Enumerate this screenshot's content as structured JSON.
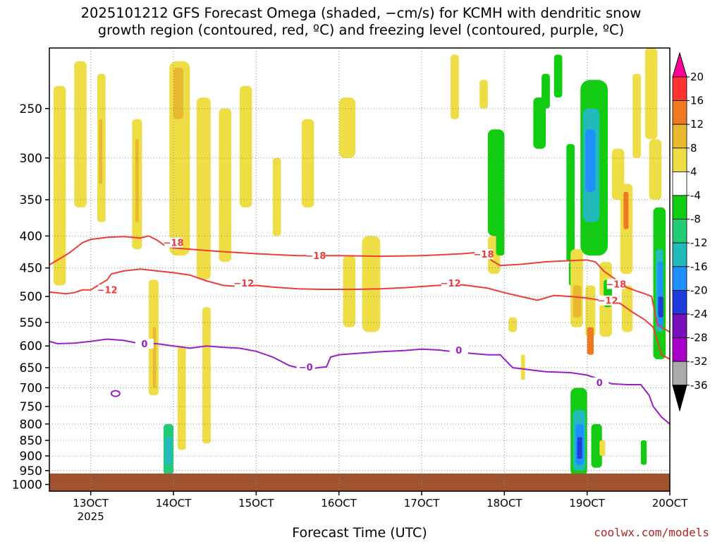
{
  "title_lines": [
    "2025101212 GFS Forecast Omega (shaded, −cm/s) for KCMH with dendritic snow",
    "growth region (contoured, red, ºC) and freezing level (contoured, purple, ºC)"
  ],
  "credit": "coolwx.com/models",
  "chart_data": {
    "type": "heatmap",
    "title": "2025101212 GFS Forecast Omega (shaded, −cm/s) for KCMH with dendritic snow growth region (contoured, red, ºC) and freezing level (contoured, purple, ºC)",
    "xlabel": "Forecast Time (UTC)",
    "ylabel": "",
    "x_ticks": [
      {
        "day": 13,
        "label": "13OCT",
        "sublabel": "2025"
      },
      {
        "day": 14,
        "label": "14OCT"
      },
      {
        "day": 15,
        "label": "15OCT"
      },
      {
        "day": 16,
        "label": "16OCT"
      },
      {
        "day": 17,
        "label": "17OCT"
      },
      {
        "day": 18,
        "label": "18OCT"
      },
      {
        "day": 19,
        "label": "19OCT"
      },
      {
        "day": 20,
        "label": "20OCT"
      }
    ],
    "xlim": [
      12.5,
      20.0
    ],
    "y_ticks": [
      250,
      300,
      350,
      400,
      450,
      500,
      550,
      600,
      650,
      700,
      750,
      800,
      850,
      900,
      950,
      1000
    ],
    "ylim_hpa": [
      200,
      1025
    ],
    "y_scale": "log-pressure",
    "grid": "dotted",
    "colorbar": {
      "ticks": [
        20,
        16,
        12,
        8,
        4,
        -4,
        -8,
        -12,
        -16,
        -20,
        -24,
        -28,
        -32,
        -36
      ],
      "colors": [
        "#ff0099",
        "#ff3333",
        "#f07820",
        "#e8b830",
        "#eedd44",
        "#ffffff",
        "#11cc11",
        "#22cc77",
        "#22bbbb",
        "#1e90ff",
        "#1e3cdc",
        "#7711bb",
        "#aa00cc",
        "#aaaaaa",
        "#000000"
      ]
    },
    "omega_shading": [
      {
        "t0": 12.55,
        "t1": 12.7,
        "p0": 230,
        "p1": 480,
        "v": 4
      },
      {
        "t0": 12.8,
        "t1": 12.95,
        "p0": 210,
        "p1": 360,
        "v": 4
      },
      {
        "t0": 13.08,
        "t1": 13.18,
        "p0": 220,
        "p1": 380,
        "v": 5
      },
      {
        "t0": 13.1,
        "t1": 13.14,
        "p0": 260,
        "p1": 330,
        "v": 8
      },
      {
        "t0": 13.5,
        "t1": 13.62,
        "p0": 260,
        "p1": 420,
        "v": 5
      },
      {
        "t0": 13.54,
        "t1": 13.58,
        "p0": 280,
        "p1": 380,
        "v": 8
      },
      {
        "t0": 13.7,
        "t1": 13.82,
        "p0": 470,
        "p1": 720,
        "v": 5
      },
      {
        "t0": 13.75,
        "t1": 13.79,
        "p0": 560,
        "p1": 700,
        "v": 8
      },
      {
        "t0": 13.95,
        "t1": 14.2,
        "p0": 210,
        "p1": 430,
        "v": 5
      },
      {
        "t0": 14.0,
        "t1": 14.12,
        "p0": 215,
        "p1": 260,
        "v": 8
      },
      {
        "t0": 14.05,
        "t1": 14.15,
        "p0": 600,
        "p1": 880,
        "v": 4
      },
      {
        "t0": 14.28,
        "t1": 14.45,
        "p0": 240,
        "p1": 470,
        "v": 4
      },
      {
        "t0": 14.35,
        "t1": 14.45,
        "p0": 520,
        "p1": 860,
        "v": 4
      },
      {
        "t0": 14.55,
        "t1": 14.7,
        "p0": 250,
        "p1": 440,
        "v": 4
      },
      {
        "t0": 14.8,
        "t1": 14.95,
        "p0": 230,
        "p1": 360,
        "v": 4
      },
      {
        "t0": 15.2,
        "t1": 15.3,
        "p0": 300,
        "p1": 400,
        "v": 4
      },
      {
        "t0": 15.55,
        "t1": 15.7,
        "p0": 260,
        "p1": 360,
        "v": 4
      },
      {
        "t0": 16.0,
        "t1": 16.2,
        "p0": 240,
        "p1": 300,
        "v": 4
      },
      {
        "t0": 16.05,
        "t1": 16.2,
        "p0": 430,
        "p1": 560,
        "v": 4
      },
      {
        "t0": 16.28,
        "t1": 16.5,
        "p0": 400,
        "p1": 570,
        "v": 4
      },
      {
        "t0": 17.35,
        "t1": 17.45,
        "p0": 205,
        "p1": 260,
        "v": 4
      },
      {
        "t0": 17.7,
        "t1": 17.8,
        "p0": 225,
        "p1": 250,
        "v": 5
      },
      {
        "t0": 17.8,
        "t1": 17.95,
        "p0": 400,
        "p1": 460,
        "v": 4
      },
      {
        "t0": 17.9,
        "t1": 18.0,
        "p0": 380,
        "p1": 420,
        "v": 4
      },
      {
        "t0": 17.8,
        "t1": 18.0,
        "p0": 270,
        "p1": 400,
        "v": -6
      },
      {
        "t0": 17.9,
        "t1": 18.0,
        "p0": 380,
        "p1": 430,
        "v": -7
      },
      {
        "t0": 18.05,
        "t1": 18.15,
        "p0": 540,
        "p1": 570,
        "v": 4
      },
      {
        "t0": 18.2,
        "t1": 18.25,
        "p0": 620,
        "p1": 680,
        "v": 4
      },
      {
        "t0": 18.35,
        "t1": 18.5,
        "p0": 240,
        "p1": 290,
        "v": -6
      },
      {
        "t0": 18.45,
        "t1": 18.55,
        "p0": 220,
        "p1": 250,
        "v": -6
      },
      {
        "t0": 18.6,
        "t1": 18.7,
        "p0": 205,
        "p1": 240,
        "v": -6
      },
      {
        "t0": 18.75,
        "t1": 18.85,
        "p0": 285,
        "p1": 440,
        "v": -6
      },
      {
        "t0": 18.78,
        "t1": 18.85,
        "p0": 440,
        "p1": 480,
        "v": -7
      },
      {
        "t0": 18.8,
        "t1": 18.95,
        "p0": 420,
        "p1": 560,
        "v": 4
      },
      {
        "t0": 18.83,
        "t1": 18.93,
        "p0": 480,
        "p1": 540,
        "v": 8
      },
      {
        "t0": 18.92,
        "t1": 19.25,
        "p0": 225,
        "p1": 430,
        "v": -7
      },
      {
        "t0": 18.95,
        "t1": 19.15,
        "p0": 250,
        "p1": 380,
        "v": -12
      },
      {
        "t0": 18.98,
        "t1": 19.1,
        "p0": 270,
        "p1": 340,
        "v": -18
      },
      {
        "t0": 18.98,
        "t1": 19.1,
        "p0": 480,
        "p1": 580,
        "v": 5
      },
      {
        "t0": 19.0,
        "t1": 19.08,
        "p0": 560,
        "p1": 620,
        "v": 12
      },
      {
        "t0": 19.15,
        "t1": 19.3,
        "p0": 440,
        "p1": 580,
        "v": 4
      },
      {
        "t0": 19.2,
        "t1": 19.3,
        "p0": 470,
        "p1": 520,
        "v": -6
      },
      {
        "t0": 19.3,
        "t1": 19.45,
        "p0": 290,
        "p1": 350,
        "v": 4
      },
      {
        "t0": 19.4,
        "t1": 19.55,
        "p0": 330,
        "p1": 460,
        "v": 5
      },
      {
        "t0": 19.44,
        "t1": 19.5,
        "p0": 340,
        "p1": 390,
        "v": 12
      },
      {
        "t0": 19.42,
        "t1": 19.55,
        "p0": 480,
        "p1": 570,
        "v": 4
      },
      {
        "t0": 19.55,
        "t1": 19.65,
        "p0": 220,
        "p1": 300,
        "v": 4
      },
      {
        "t0": 19.7,
        "t1": 19.85,
        "p0": 200,
        "p1": 280,
        "v": 4
      },
      {
        "t0": 19.75,
        "t1": 19.9,
        "p0": 280,
        "p1": 350,
        "v": 5
      },
      {
        "t0": 19.8,
        "t1": 19.95,
        "p0": 360,
        "p1": 630,
        "v": -7
      },
      {
        "t0": 19.83,
        "t1": 19.92,
        "p0": 420,
        "p1": 570,
        "v": -12
      },
      {
        "t0": 19.85,
        "t1": 19.92,
        "p0": 440,
        "p1": 560,
        "v": -18
      },
      {
        "t0": 19.86,
        "t1": 19.92,
        "p0": 500,
        "p1": 540,
        "v": -22
      },
      {
        "t0": 13.88,
        "t1": 14.0,
        "p0": 800,
        "p1": 965,
        "v": -8
      },
      {
        "t0": 13.9,
        "t1": 13.98,
        "p0": 840,
        "p1": 930,
        "v": -14
      },
      {
        "t0": 18.8,
        "t1": 19.0,
        "p0": 700,
        "p1": 970,
        "v": -7
      },
      {
        "t0": 18.83,
        "t1": 18.98,
        "p0": 760,
        "p1": 950,
        "v": -12
      },
      {
        "t0": 18.86,
        "t1": 18.96,
        "p0": 800,
        "p1": 930,
        "v": -16
      },
      {
        "t0": 18.88,
        "t1": 18.94,
        "p0": 840,
        "p1": 910,
        "v": -22
      },
      {
        "t0": 19.05,
        "t1": 19.18,
        "p0": 800,
        "p1": 940,
        "v": -7
      },
      {
        "t0": 19.15,
        "t1": 19.22,
        "p0": 850,
        "p1": 900,
        "v": 4
      },
      {
        "t0": 19.65,
        "t1": 19.72,
        "p0": 850,
        "p1": 930,
        "v": -7
      }
    ],
    "dgz_minus18": [
      [
        12.5,
        445
      ],
      [
        12.6,
        437
      ],
      [
        12.75,
        425
      ],
      [
        12.9,
        410
      ],
      [
        13.0,
        405
      ],
      [
        13.2,
        402
      ],
      [
        13.4,
        401
      ],
      [
        13.6,
        403
      ],
      [
        13.7,
        400
      ],
      [
        13.8,
        406
      ],
      [
        13.9,
        415
      ],
      [
        14.0,
        418
      ],
      [
        14.2,
        420
      ],
      [
        14.5,
        423
      ],
      [
        15.0,
        427
      ],
      [
        15.5,
        430
      ],
      [
        16.0,
        430
      ],
      [
        16.5,
        431
      ],
      [
        17.0,
        430
      ],
      [
        17.5,
        427
      ],
      [
        17.75,
        424
      ],
      [
        17.85,
        438
      ],
      [
        17.95,
        446
      ],
      [
        18.2,
        444
      ],
      [
        18.5,
        440
      ],
      [
        18.8,
        438
      ],
      [
        19.0,
        437
      ],
      [
        19.1,
        440
      ],
      [
        19.2,
        455
      ],
      [
        19.35,
        470
      ],
      [
        19.45,
        482
      ],
      [
        19.6,
        490
      ],
      [
        19.7,
        495
      ],
      [
        19.78,
        500
      ],
      [
        19.85,
        555
      ],
      [
        19.9,
        560
      ],
      [
        20.0,
        570
      ]
    ],
    "dgz_minus12": [
      [
        12.5,
        492
      ],
      [
        12.7,
        495
      ],
      [
        12.8,
        493
      ],
      [
        12.9,
        488
      ],
      [
        13.0,
        488
      ],
      [
        13.2,
        470
      ],
      [
        13.25,
        460
      ],
      [
        13.4,
        455
      ],
      [
        13.6,
        452
      ],
      [
        13.8,
        455
      ],
      [
        14.0,
        458
      ],
      [
        14.2,
        462
      ],
      [
        14.4,
        472
      ],
      [
        14.6,
        480
      ],
      [
        14.8,
        482
      ],
      [
        15.0,
        480
      ],
      [
        15.2,
        483
      ],
      [
        15.5,
        486
      ],
      [
        15.8,
        487
      ],
      [
        16.2,
        487
      ],
      [
        16.5,
        486
      ],
      [
        16.8,
        484
      ],
      [
        17.0,
        482
      ],
      [
        17.2,
        480
      ],
      [
        17.5,
        479
      ],
      [
        17.8,
        485
      ],
      [
        18.0,
        493
      ],
      [
        18.2,
        500
      ],
      [
        18.4,
        507
      ],
      [
        18.6,
        498
      ],
      [
        18.8,
        500
      ],
      [
        19.0,
        503
      ],
      [
        19.2,
        508
      ],
      [
        19.4,
        513
      ],
      [
        19.55,
        530
      ],
      [
        19.7,
        545
      ],
      [
        19.8,
        560
      ],
      [
        19.9,
        620
      ],
      [
        20.0,
        630
      ]
    ],
    "freezing_level_0c": [
      [
        12.5,
        590
      ],
      [
        12.6,
        595
      ],
      [
        12.8,
        594
      ],
      [
        13.0,
        590
      ],
      [
        13.2,
        585
      ],
      [
        13.4,
        588
      ],
      [
        13.6,
        595
      ],
      [
        13.8,
        595
      ],
      [
        14.0,
        600
      ],
      [
        14.2,
        605
      ],
      [
        14.4,
        600
      ],
      [
        14.6,
        603
      ],
      [
        14.8,
        605
      ],
      [
        15.0,
        612
      ],
      [
        15.2,
        625
      ],
      [
        15.4,
        645
      ],
      [
        15.6,
        655
      ],
      [
        15.75,
        650
      ],
      [
        15.85,
        648
      ],
      [
        15.9,
        625
      ],
      [
        16.0,
        620
      ],
      [
        16.2,
        617
      ],
      [
        16.5,
        613
      ],
      [
        16.8,
        610
      ],
      [
        17.0,
        607
      ],
      [
        17.2,
        609
      ],
      [
        17.5,
        615
      ],
      [
        17.8,
        620
      ],
      [
        17.95,
        620
      ],
      [
        18.1,
        650
      ],
      [
        18.3,
        655
      ],
      [
        18.5,
        660
      ],
      [
        18.8,
        662
      ],
      [
        19.0,
        668
      ],
      [
        19.1,
        675
      ],
      [
        19.3,
        690
      ],
      [
        19.5,
        692
      ],
      [
        19.65,
        692
      ],
      [
        19.75,
        720
      ],
      [
        19.8,
        750
      ],
      [
        19.9,
        780
      ],
      [
        20.0,
        800
      ]
    ],
    "contour_labels": [
      {
        "text": "−18",
        "t": 14.0,
        "p": 412,
        "color": "red"
      },
      {
        "text": "−18",
        "t": 15.72,
        "p": 432,
        "color": "red"
      },
      {
        "text": "−18",
        "t": 17.75,
        "p": 430,
        "color": "red"
      },
      {
        "text": "−18",
        "t": 19.35,
        "p": 480,
        "color": "red"
      },
      {
        "text": "−12",
        "t": 13.2,
        "p": 490,
        "color": "red"
      },
      {
        "text": "−12",
        "t": 14.85,
        "p": 478,
        "color": "red"
      },
      {
        "text": "−12",
        "t": 17.35,
        "p": 478,
        "color": "red"
      },
      {
        "text": "−12",
        "t": 19.25,
        "p": 510,
        "color": "red"
      },
      {
        "text": "0",
        "t": 13.65,
        "p": 598,
        "color": "purple"
      },
      {
        "text": "−0",
        "t": 15.6,
        "p": 652,
        "color": "purple"
      },
      {
        "text": "0",
        "t": 17.45,
        "p": 612,
        "color": "purple"
      },
      {
        "text": "0",
        "t": 19.15,
        "p": 690,
        "color": "purple"
      }
    ],
    "small_contour": {
      "t": 13.3,
      "p": 715,
      "color": "purple"
    }
  }
}
